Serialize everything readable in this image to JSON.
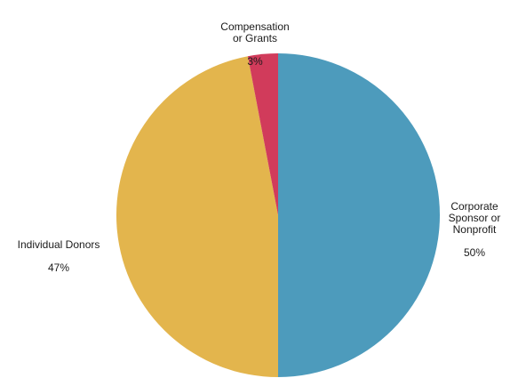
{
  "chart_data": {
    "type": "pie",
    "slices": [
      {
        "label": "Corporate Sponsor or Nonprofit",
        "display_label": "Corporate\nSponsor or\nNonprofit",
        "value": 50,
        "value_label": "50%",
        "color": "#4d9bbc"
      },
      {
        "label": "Individual Donors",
        "display_label": "Individual Donors",
        "value": 47,
        "value_label": "47%",
        "color": "#e3b54d"
      },
      {
        "label": "Compensation or Grants",
        "display_label": "Compensation\nor Grants",
        "value": 3,
        "value_label": "3%",
        "color": "#d13b5b"
      }
    ],
    "start_angle_deg": 0,
    "direction": "clockwise"
  }
}
